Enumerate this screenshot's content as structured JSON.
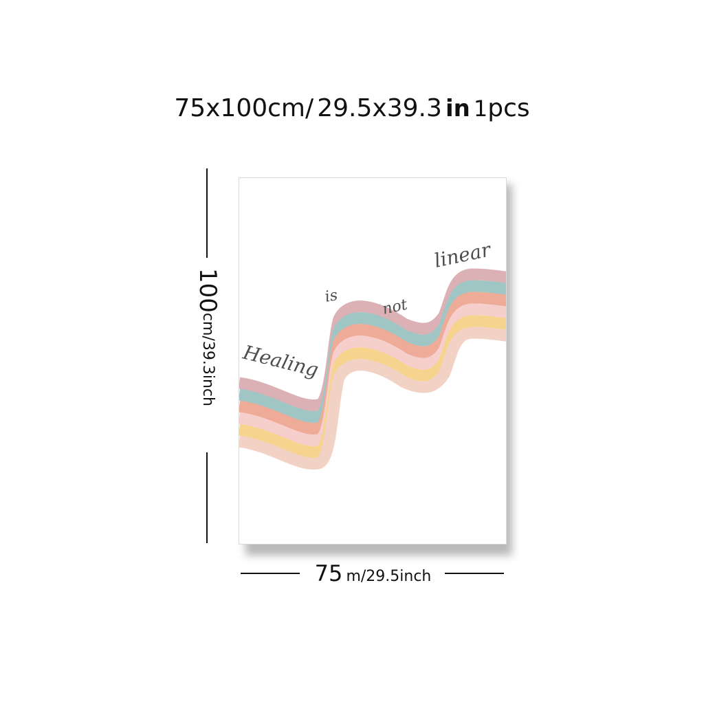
{
  "size_title": {
    "part1": "75",
    "part2": "x100cm/",
    "part3": "29.5",
    "part4": "x",
    "part5": "39.3",
    "part6": "in",
    "part7": "1",
    "part8": "pcs"
  },
  "height_label": {
    "number": "100",
    "unit": "cm/39.3inch"
  },
  "width_label": {
    "number": "75",
    "unit": "m/29.5inch"
  },
  "poster": {
    "words": {
      "w1": "Healing",
      "w2": "is",
      "w3": "not",
      "w4": "linear"
    },
    "band_colors": [
      "#dbb1b5",
      "#9fc6c4",
      "#eeab97",
      "#f6cfcd",
      "#f7d48e",
      "#f1d2c4"
    ],
    "text_color": "#4d4d4d"
  }
}
